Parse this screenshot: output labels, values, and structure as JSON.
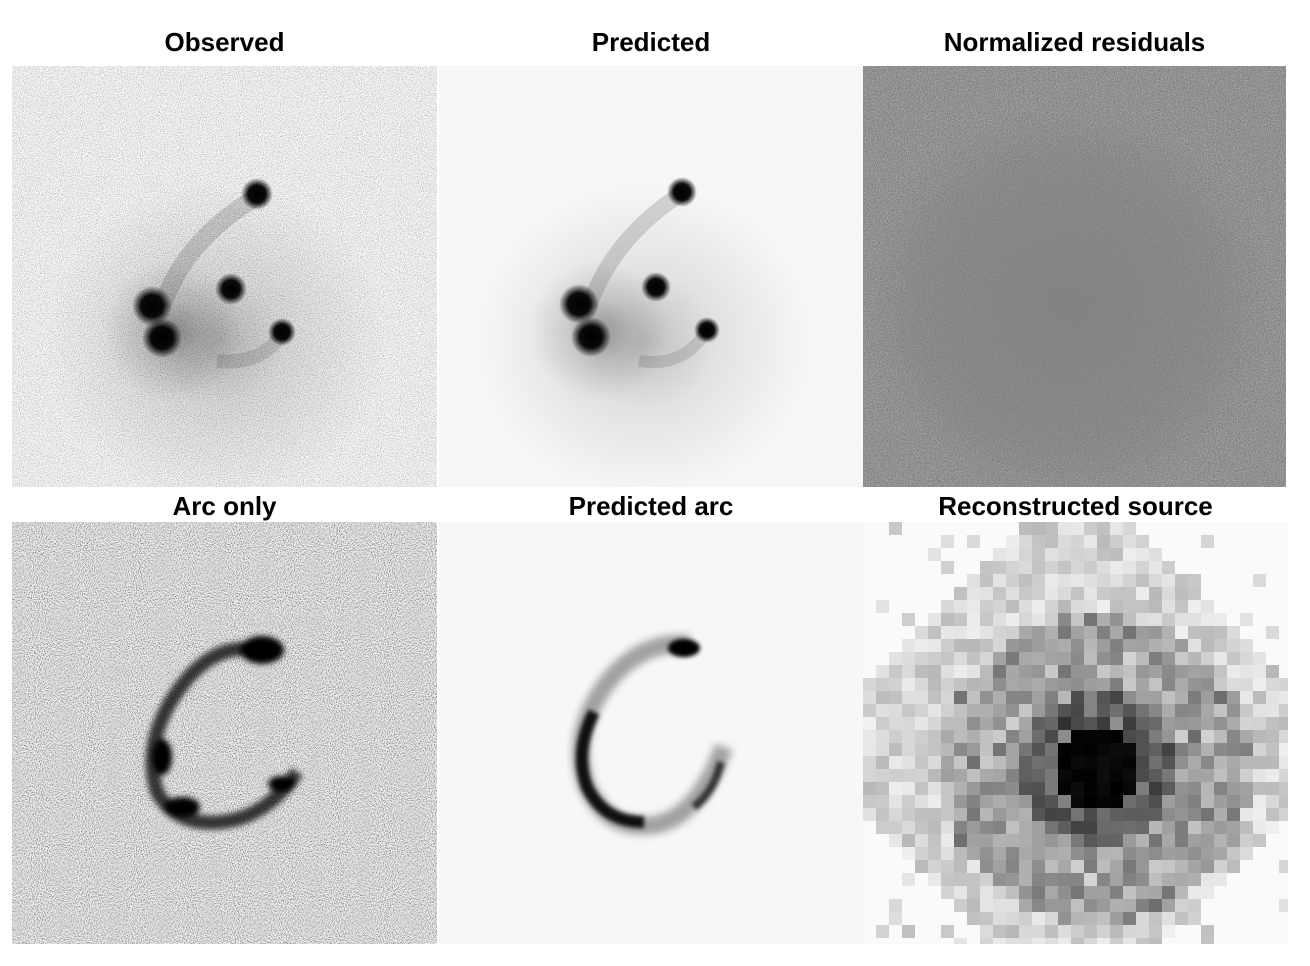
{
  "figure": {
    "panels": [
      {
        "id": "observed",
        "title": "Observed"
      },
      {
        "id": "predicted",
        "title": "Predicted"
      },
      {
        "id": "residuals",
        "title": "Normalized residuals"
      },
      {
        "id": "arc-only",
        "title": "Arc only"
      },
      {
        "id": "predicted-arc",
        "title": "Predicted arc"
      },
      {
        "id": "source",
        "title": "Reconstructed source"
      }
    ]
  },
  "colors": {
    "background": "#ffffff",
    "ink": "#000000",
    "residual_gray": "#808080"
  }
}
